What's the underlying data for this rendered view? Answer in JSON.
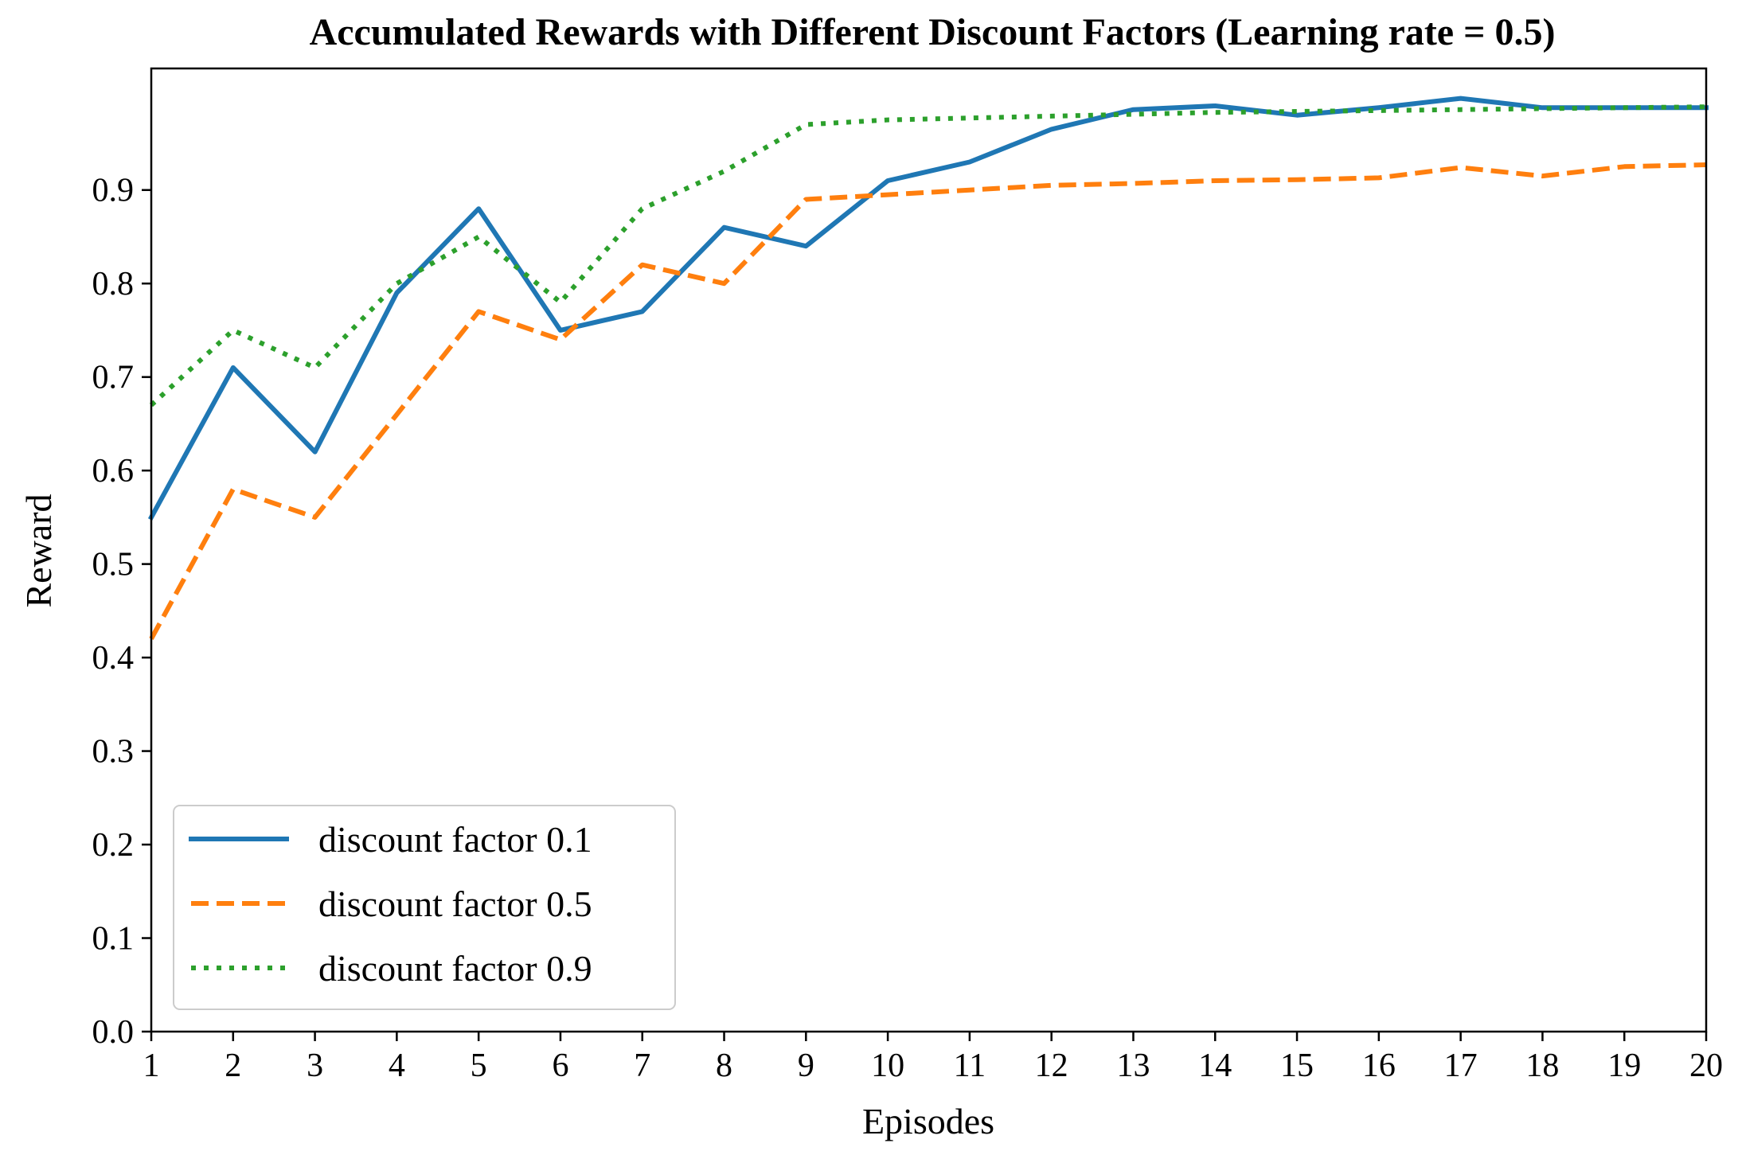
{
  "chart_data": {
    "type": "line",
    "title": "Accumulated Rewards with Different Discount Factors (Learning rate = 0.5)",
    "xlabel": "Episodes",
    "ylabel": "Reward",
    "x": [
      1,
      2,
      3,
      4,
      5,
      6,
      7,
      8,
      9,
      10,
      11,
      12,
      13,
      14,
      15,
      16,
      17,
      18,
      19,
      20
    ],
    "xlim": [
      1,
      20
    ],
    "ylim": [
      0,
      1.03
    ],
    "xticks": [
      "1",
      "2",
      "3",
      "4",
      "5",
      "6",
      "7",
      "8",
      "9",
      "10",
      "11",
      "12",
      "13",
      "14",
      "15",
      "16",
      "17",
      "18",
      "19",
      "20"
    ],
    "yticks": [
      0.0,
      0.1,
      0.2,
      0.3,
      0.4,
      0.5,
      0.6,
      0.7,
      0.8,
      0.9
    ],
    "ytick_labels": [
      "0.0",
      "0.1",
      "0.2",
      "0.3",
      "0.4",
      "0.5",
      "0.6",
      "0.7",
      "0.8",
      "0.9"
    ],
    "grid": false,
    "legend_position": "bottom-left",
    "series": [
      {
        "name": "discount factor 0.1",
        "color": "#1f77b4",
        "style": "solid",
        "values": [
          0.55,
          0.71,
          0.62,
          0.79,
          0.88,
          0.75,
          0.77,
          0.86,
          0.84,
          0.91,
          0.93,
          0.965,
          0.986,
          0.99,
          0.98,
          0.988,
          0.998,
          0.988,
          0.988,
          0.988
        ]
      },
      {
        "name": "discount factor 0.5",
        "color": "#ff7f0e",
        "style": "dashed",
        "values": [
          0.42,
          0.58,
          0.55,
          0.66,
          0.77,
          0.74,
          0.82,
          0.8,
          0.89,
          0.895,
          0.9,
          0.905,
          0.907,
          0.91,
          0.911,
          0.913,
          0.924,
          0.915,
          0.925,
          0.927
        ]
      },
      {
        "name": "discount factor 0.9",
        "color": "#2ca02c",
        "style": "dotted",
        "values": [
          0.67,
          0.75,
          0.71,
          0.8,
          0.85,
          0.78,
          0.88,
          0.92,
          0.97,
          0.975,
          0.977,
          0.979,
          0.981,
          0.983,
          0.984,
          0.985,
          0.986,
          0.987,
          0.988,
          0.989
        ]
      }
    ]
  }
}
